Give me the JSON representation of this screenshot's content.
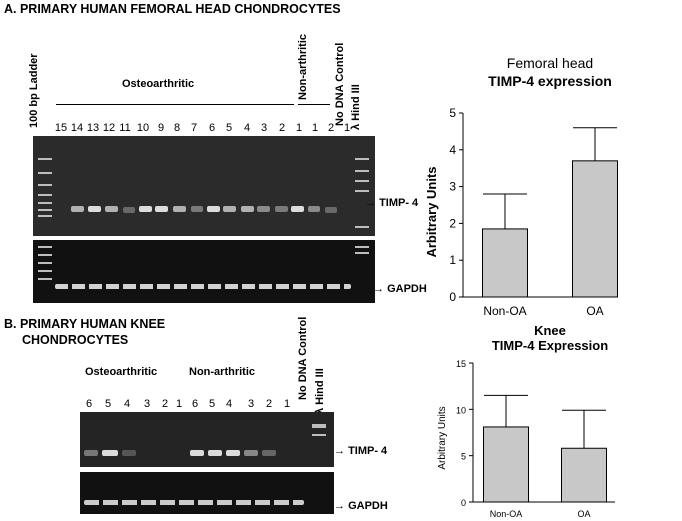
{
  "panel_a": {
    "title": "A. PRIMARY HUMAN FEMORAL HEAD CHONDROCYTES",
    "ladder_label": "100 bp Ladder",
    "group_oa": "Osteoarthritic",
    "group_non": "Non-arthritic",
    "no_dna": "No DNA Control",
    "hind": "λ Hind III",
    "oa_lanes": [
      "15",
      "14",
      "13",
      "12",
      "11",
      "10",
      "9",
      "8",
      "7",
      "6",
      "5",
      "4",
      "3",
      "2",
      "1"
    ],
    "non_lanes": [
      "1",
      "2",
      "1"
    ],
    "timp_label": "TIMP- 4",
    "gapdh_label": "GAPDH"
  },
  "panel_b": {
    "title_line1": "B. PRIMARY HUMAN KNEE",
    "title_line2": "CHONDROCYTES",
    "group_oa": "Osteoarthritic",
    "group_non": "Non-arthritic",
    "no_dna": "No DNA Control",
    "hind": "λ Hind III",
    "oa_lanes": [
      "6",
      "5",
      "4",
      "3",
      "2",
      "1"
    ],
    "non_lanes": [
      "6",
      "5",
      "4",
      "3",
      "2",
      "1"
    ],
    "timp_label": "TIMP- 4",
    "gapdh_label": "GAPDH"
  },
  "chart_data": [
    {
      "type": "bar",
      "title": "Femoral head",
      "subtitle": "TIMP-4 expression",
      "ylabel": "Arbitrary Units",
      "categories": [
        "Non-OA",
        "OA"
      ],
      "values": [
        1.85,
        3.7
      ],
      "errors": [
        0.95,
        0.9
      ],
      "ylim": [
        0,
        5
      ],
      "yticks": [
        0,
        1,
        2,
        3,
        4,
        5
      ],
      "bar_color": "#c8c8c8"
    },
    {
      "type": "bar",
      "title": "Knee",
      "subtitle": "TIMP-4 Expression",
      "ylabel": "Arbitrary Units",
      "categories": [
        "Non-OA",
        "OA"
      ],
      "values": [
        8.1,
        5.8
      ],
      "errors": [
        3.4,
        4.1
      ],
      "ylim": [
        0,
        15
      ],
      "yticks": [
        0,
        5,
        10,
        15
      ],
      "bar_color": "#c8c8c8"
    }
  ]
}
